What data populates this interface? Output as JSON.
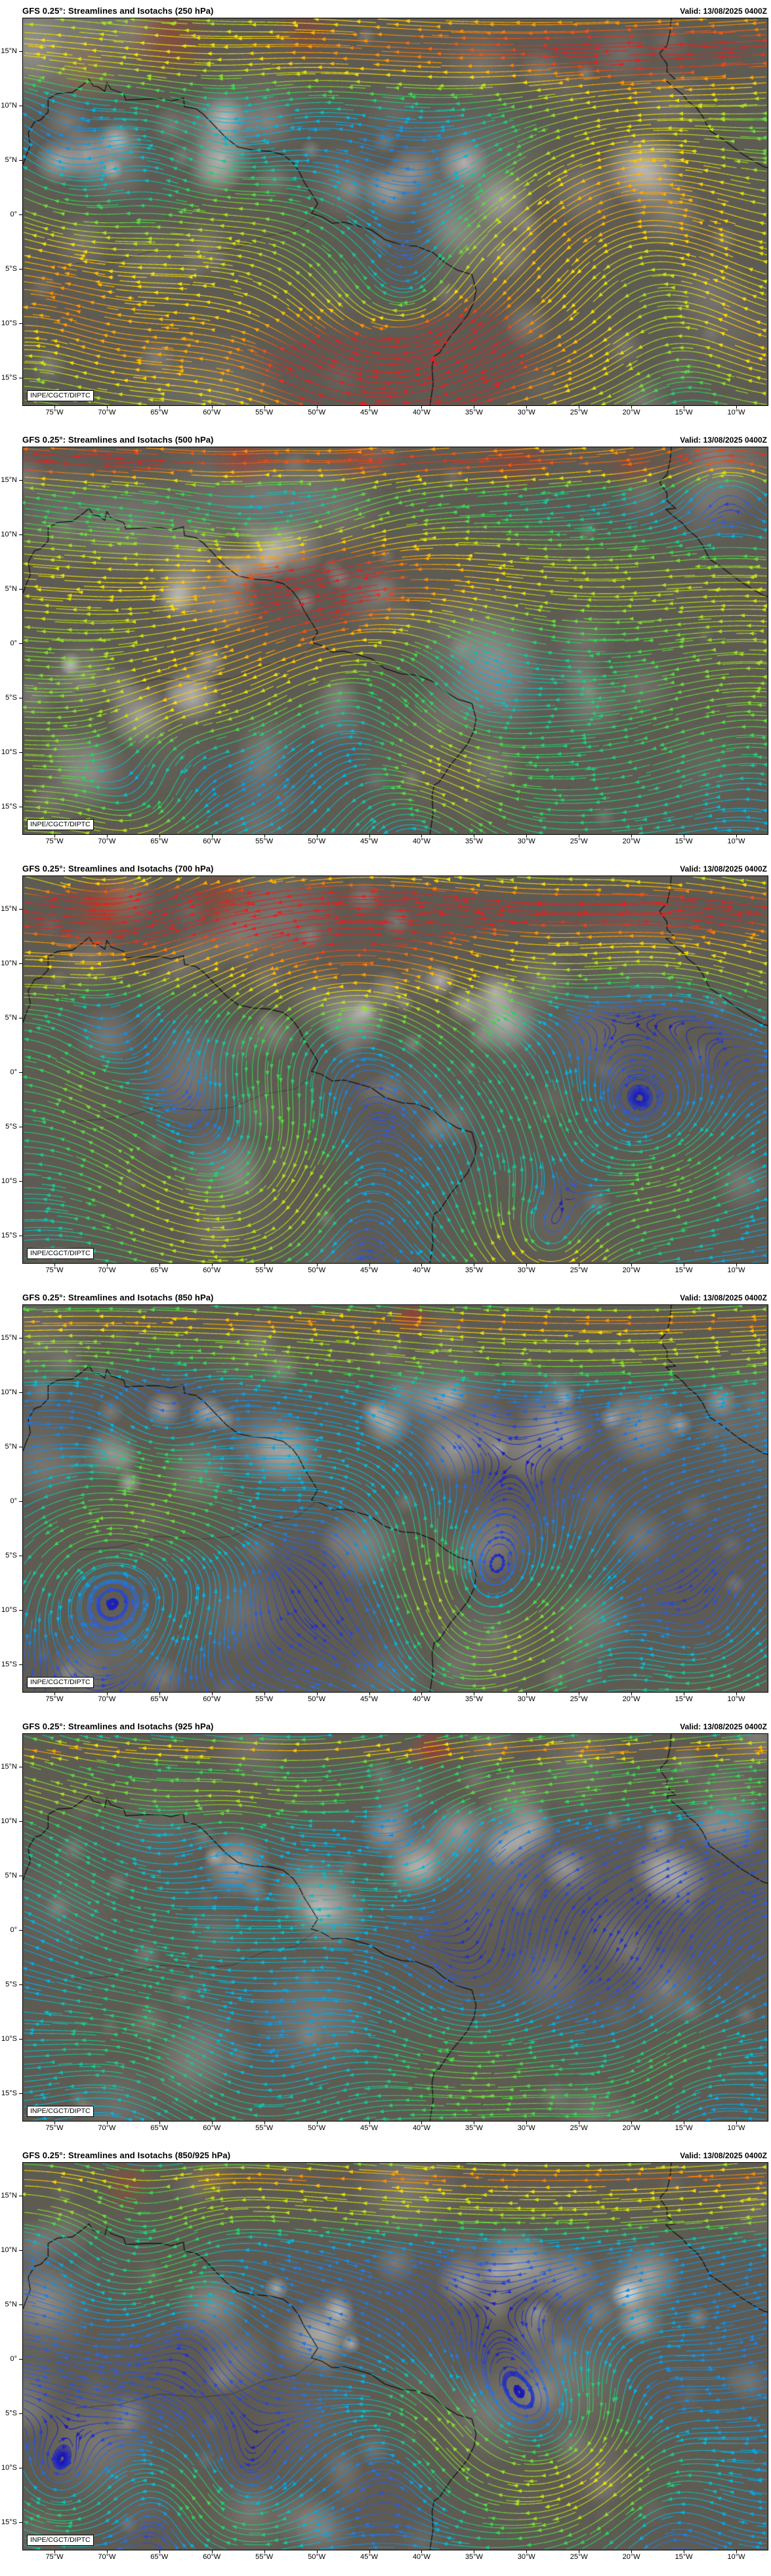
{
  "meta": {
    "credit": "INPE/CGCT/DIPTC",
    "model": "GFS 0.25°",
    "product": "Streamlines and Isotachs",
    "valid": "Valid: 13/08/2025 0400Z"
  },
  "panels": [
    {
      "title": "GFS 0.25°: Streamlines and Isotachs (250 hPa)",
      "level": "250 hPa",
      "valid": "Valid: 13/08/2025 0400Z"
    },
    {
      "title": "GFS 0.25°: Streamlines and Isotachs (500 hPa)",
      "level": "500 hPa",
      "valid": "Valid: 13/08/2025 0400Z"
    },
    {
      "title": "GFS 0.25°: Streamlines and Isotachs (700 hPa)",
      "level": "700 hPa",
      "valid": "Valid: 13/08/2025 0400Z"
    },
    {
      "title": "GFS 0.25°: Streamlines and Isotachs (850 hPa)",
      "level": "850 hPa",
      "valid": "Valid: 13/08/2025 0400Z"
    },
    {
      "title": "GFS 0.25°: Streamlines and Isotachs (925 hPa)",
      "level": "925 hPa",
      "valid": "Valid: 13/08/2025 0400Z"
    },
    {
      "title": "GFS 0.25°: Streamlines and Isotachs (850/925 hPa)",
      "level": "850/925 hPa",
      "valid": "Valid: 13/08/2025 0400Z"
    }
  ],
  "axes": {
    "lat_labels": [
      "15°N",
      "10°N",
      "5°N",
      "0°",
      "5°S",
      "10°S",
      "15°S"
    ],
    "lat_values": [
      15,
      10,
      5,
      0,
      -5,
      -10,
      -15
    ],
    "lon_labels": [
      "75°W",
      "70°W",
      "65°W",
      "60°W",
      "55°W",
      "50°W",
      "45°W",
      "40°W",
      "35°W",
      "30°W",
      "25°W",
      "20°W",
      "15°W",
      "10°W"
    ],
    "lon_values": [
      -75,
      -70,
      -65,
      -60,
      -55,
      -50,
      -45,
      -40,
      -35,
      -30,
      -25,
      -20,
      -15,
      -10
    ]
  },
  "isotach_colormap": [
    "#1c16b4",
    "#2f62e0",
    "#00b4e6",
    "#2ed357",
    "#a8e020",
    "#ffe000",
    "#ff9000",
    "#e62020"
  ],
  "map_background_color": "#5e5b53"
}
